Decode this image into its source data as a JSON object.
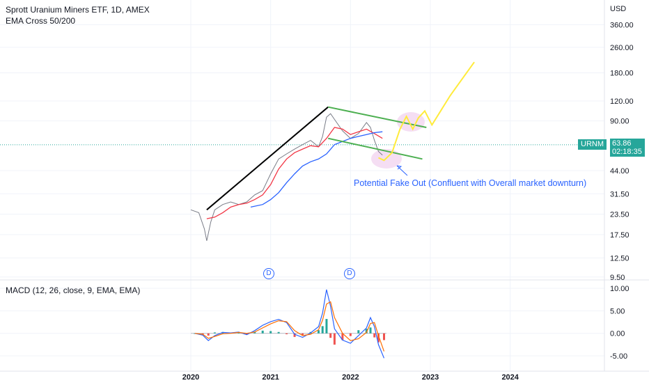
{
  "header": {
    "title": "Sprott Uranium Miners ETF, 1D, AMEX",
    "indicator": "EMA Cross 50/200",
    "macd_label": "MACD (12, 26, close, 9, EMA, EMA)",
    "currency": "USD"
  },
  "last_price": {
    "symbol": "URNM",
    "price": "63.86",
    "countdown": "02:18:35",
    "color": "#26a69a"
  },
  "annotation": {
    "text": "Potential Fake Out (Confluent with Overall market downturn)"
  },
  "event_markers": [
    "D",
    "D"
  ],
  "chart_data": [
    {
      "type": "line",
      "scale": "log",
      "price_ticks": [
        "360.00",
        "260.00",
        "180.00",
        "120.00",
        "90.00",
        "44.00",
        "31.50",
        "23.50",
        "17.50",
        "12.50",
        "9.50"
      ],
      "x_ticks": [
        "2020",
        "2021",
        "2022",
        "2023",
        "2024"
      ],
      "series": [
        {
          "kind": "price",
          "x": [
            2020.0,
            2020.1,
            2020.17,
            2020.2,
            2020.25,
            2020.3,
            2020.4,
            2020.5,
            2020.6,
            2020.7,
            2020.8,
            2020.9,
            2021.0,
            2021.1,
            2021.2,
            2021.3,
            2021.4,
            2021.5,
            2021.6,
            2021.65,
            2021.7,
            2021.75,
            2021.8,
            2021.9,
            2022.0,
            2022.1,
            2022.2,
            2022.25,
            2022.3,
            2022.35,
            2022.4
          ],
          "y": [
            25,
            24,
            19,
            16,
            21,
            25,
            27,
            28,
            27,
            28,
            31,
            33,
            42,
            52,
            56,
            60,
            64,
            68,
            62,
            72,
            95,
            100,
            92,
            78,
            70,
            75,
            88,
            82,
            68,
            58,
            55
          ]
        },
        {
          "kind": "ema50",
          "x": [
            2020.2,
            2020.3,
            2020.4,
            2020.5,
            2020.6,
            2020.7,
            2020.8,
            2020.9,
            2021.0,
            2021.1,
            2021.2,
            2021.3,
            2021.4,
            2021.5,
            2021.6,
            2021.7,
            2021.8,
            2021.9,
            2022.0,
            2022.1,
            2022.2,
            2022.3,
            2022.4
          ],
          "y": [
            22,
            22.5,
            24,
            26,
            27,
            27.5,
            29,
            31,
            36,
            45,
            52,
            57,
            60,
            63,
            62,
            70,
            82,
            80,
            74,
            77,
            80,
            75,
            70
          ]
        },
        {
          "kind": "ema200",
          "x": [
            2020.75,
            2020.9,
            2021.0,
            2021.1,
            2021.2,
            2021.3,
            2021.4,
            2021.5,
            2021.6,
            2021.7,
            2021.8,
            2021.9,
            2022.0,
            2022.1,
            2022.2,
            2022.3,
            2022.4
          ],
          "y": [
            26,
            27,
            29,
            32,
            37,
            42,
            47,
            50,
            52,
            56,
            64,
            67,
            70,
            72,
            74,
            76,
            77
          ]
        }
      ],
      "drawings": {
        "trendline": {
          "x": [
            2020.2,
            2021.72
          ],
          "y": [
            25,
            110
          ]
        },
        "channel_upper": {
          "x": [
            2021.72,
            2022.95
          ],
          "y": [
            110,
            82
          ]
        },
        "channel_lower": {
          "x": [
            2021.72,
            2022.9
          ],
          "y": [
            70,
            52
          ]
        },
        "projection": {
          "x": [
            2022.35,
            2022.42,
            2022.52,
            2022.62,
            2022.7,
            2022.78,
            2022.85,
            2022.93,
            2023.02,
            2023.25,
            2023.55
          ],
          "y": [
            53,
            51,
            57,
            80,
            96,
            80,
            94,
            104,
            85,
            130,
            210
          ]
        }
      }
    },
    {
      "type": "line",
      "name": "MACD (12, 26, close, 9, EMA, EMA)",
      "y_ticks": [
        "10.00",
        "5.00",
        "0.00",
        "-5.00"
      ],
      "ylim": [
        -6,
        11
      ],
      "series": [
        {
          "kind": "macd",
          "x": [
            2020.05,
            2020.15,
            2020.22,
            2020.3,
            2020.4,
            2020.5,
            2020.6,
            2020.7,
            2020.8,
            2020.9,
            2021.0,
            2021.1,
            2021.2,
            2021.3,
            2021.4,
            2021.5,
            2021.6,
            2021.65,
            2021.7,
            2021.75,
            2021.8,
            2021.9,
            2022.0,
            2022.1,
            2022.2,
            2022.25,
            2022.3,
            2022.35,
            2022.42
          ],
          "y": [
            0.0,
            -0.4,
            -1.6,
            -0.5,
            0.2,
            0.1,
            0.3,
            -0.3,
            0.6,
            1.8,
            2.6,
            3.1,
            2.4,
            -0.2,
            -0.9,
            0.1,
            1.5,
            4.5,
            9.7,
            6.0,
            1.0,
            -1.5,
            -2.2,
            -0.5,
            1.2,
            3.5,
            1.5,
            -2.5,
            -5.5
          ]
        },
        {
          "kind": "signal",
          "x": [
            2020.05,
            2020.15,
            2020.22,
            2020.3,
            2020.4,
            2020.5,
            2020.6,
            2020.7,
            2020.8,
            2020.9,
            2021.0,
            2021.1,
            2021.2,
            2021.3,
            2021.4,
            2021.5,
            2021.6,
            2021.65,
            2021.7,
            2021.75,
            2021.8,
            2021.9,
            2022.0,
            2022.1,
            2022.2,
            2022.25,
            2022.3,
            2022.35,
            2022.42
          ],
          "y": [
            0.0,
            -0.2,
            -1.1,
            -0.7,
            -0.1,
            0.0,
            0.2,
            0.0,
            0.3,
            1.2,
            2.1,
            2.8,
            2.6,
            0.6,
            -0.5,
            -0.2,
            0.8,
            2.9,
            6.5,
            7.0,
            3.5,
            0.0,
            -1.6,
            -1.2,
            0.2,
            2.2,
            2.4,
            -0.5,
            -4.0
          ]
        }
      ]
    }
  ]
}
